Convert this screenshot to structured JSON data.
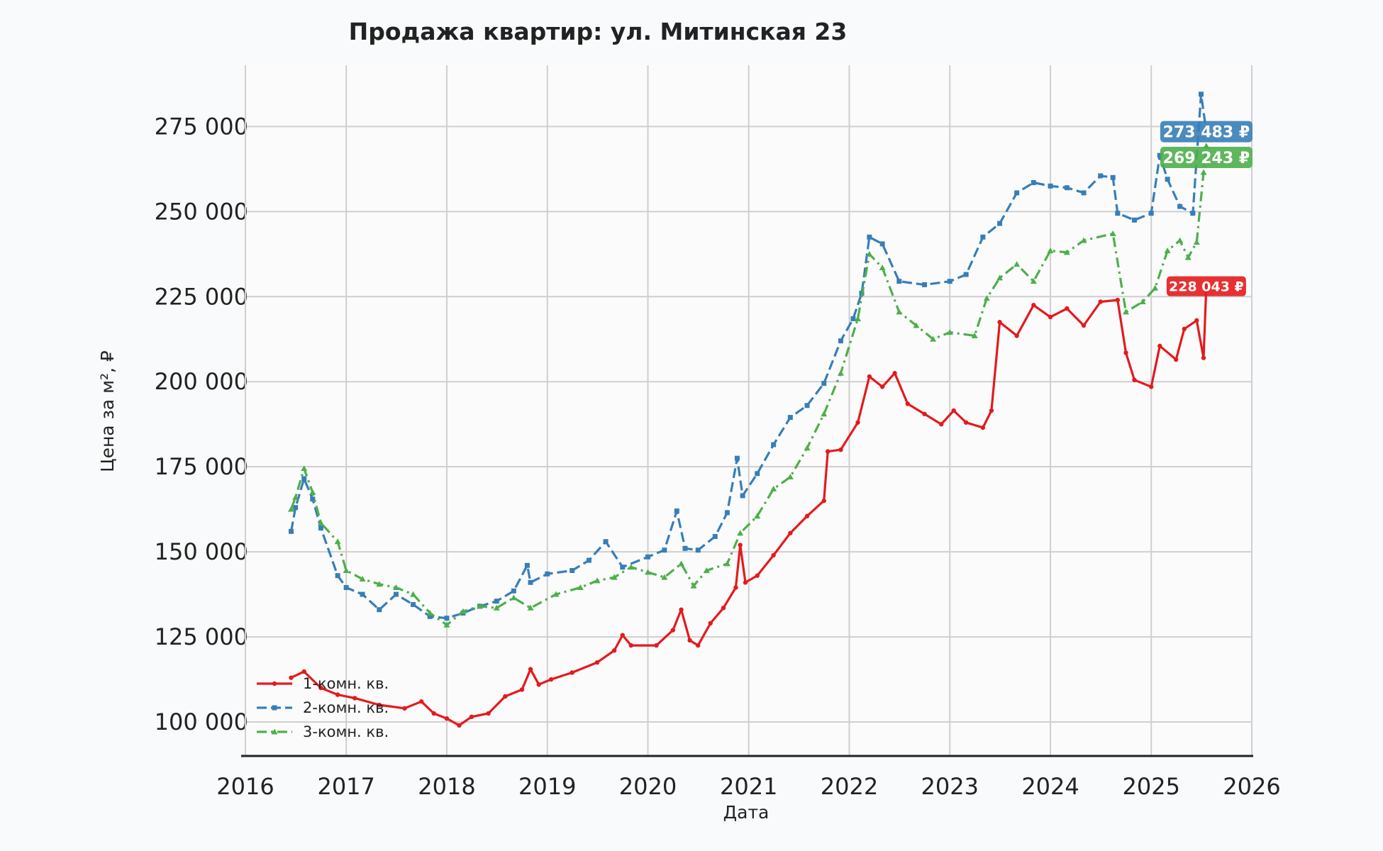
{
  "chart_data": {
    "type": "line",
    "title": "Продажа квартир: ул. Митинская 23",
    "xlabel": "Дата",
    "ylabel": "Цена за м², ₽",
    "xlim": [
      "2016-01-01",
      "2026-01-01"
    ],
    "ylim": [
      90000,
      293000
    ],
    "x_ticks": [
      "2016",
      "2017",
      "2018",
      "2019",
      "2020",
      "2021",
      "2022",
      "2023",
      "2024",
      "2025",
      "2026"
    ],
    "y_ticks": [
      100000,
      125000,
      150000,
      175000,
      200000,
      225000,
      250000,
      275000
    ],
    "y_tick_labels": [
      "100 000",
      "125 000",
      "150 000",
      "175 000",
      "200 000",
      "225 000",
      "250 000",
      "275 000"
    ],
    "grid": true,
    "legend_position": "bottom-left",
    "series": [
      {
        "name": "1-комн. кв.",
        "color": "#e41a1c",
        "dash": "solid",
        "marker": "dot",
        "end_label": "228 043 ₽",
        "points": [
          [
            "2016-06-15",
            113000
          ],
          [
            "2016-08-01",
            114800
          ],
          [
            "2016-10-01",
            110000
          ],
          [
            "2016-12-01",
            108000
          ],
          [
            "2017-02-01",
            107000
          ],
          [
            "2017-05-01",
            105000
          ],
          [
            "2017-08-01",
            104000
          ],
          [
            "2017-10-01",
            106000
          ],
          [
            "2017-11-15",
            102500
          ],
          [
            "2018-01-01",
            101000
          ],
          [
            "2018-02-15",
            99000
          ],
          [
            "2018-04-01",
            101500
          ],
          [
            "2018-06-01",
            102500
          ],
          [
            "2018-08-01",
            107500
          ],
          [
            "2018-10-01",
            109500
          ],
          [
            "2018-11-01",
            115500
          ],
          [
            "2018-12-01",
            111000
          ],
          [
            "2019-01-15",
            112500
          ],
          [
            "2019-04-01",
            114500
          ],
          [
            "2019-07-01",
            117500
          ],
          [
            "2019-09-01",
            121000
          ],
          [
            "2019-10-01",
            125500
          ],
          [
            "2019-11-01",
            122500
          ],
          [
            "2020-02-01",
            122500
          ],
          [
            "2020-04-01",
            127000
          ],
          [
            "2020-05-01",
            133000
          ],
          [
            "2020-06-01",
            124000
          ],
          [
            "2020-07-01",
            122500
          ],
          [
            "2020-08-15",
            129000
          ],
          [
            "2020-10-01",
            133500
          ],
          [
            "2020-11-15",
            139500
          ],
          [
            "2020-12-01",
            152000
          ],
          [
            "2020-12-20",
            141000
          ],
          [
            "2021-02-01",
            143000
          ],
          [
            "2021-04-01",
            149000
          ],
          [
            "2021-06-01",
            155500
          ],
          [
            "2021-08-01",
            160500
          ],
          [
            "2021-10-01",
            165000
          ],
          [
            "2021-10-15",
            179500
          ],
          [
            "2021-12-01",
            180000
          ],
          [
            "2022-02-01",
            188000
          ],
          [
            "2022-03-15",
            201500
          ],
          [
            "2022-05-01",
            198500
          ],
          [
            "2022-06-15",
            202500
          ],
          [
            "2022-08-01",
            193500
          ],
          [
            "2022-10-01",
            190500
          ],
          [
            "2022-12-01",
            187500
          ],
          [
            "2023-01-15",
            191500
          ],
          [
            "2023-03-01",
            188000
          ],
          [
            "2023-05-01",
            186500
          ],
          [
            "2023-06-01",
            191500
          ],
          [
            "2023-07-01",
            217500
          ],
          [
            "2023-09-01",
            213500
          ],
          [
            "2023-11-01",
            222500
          ],
          [
            "2024-01-01",
            219000
          ],
          [
            "2024-03-01",
            221500
          ],
          [
            "2024-05-01",
            216500
          ],
          [
            "2024-07-01",
            223500
          ],
          [
            "2024-09-01",
            224000
          ],
          [
            "2024-10-01",
            208500
          ],
          [
            "2024-11-01",
            200500
          ],
          [
            "2025-01-01",
            198500
          ],
          [
            "2025-02-01",
            210500
          ],
          [
            "2025-04-01",
            206500
          ],
          [
            "2025-05-01",
            215500
          ],
          [
            "2025-06-15",
            218000
          ],
          [
            "2025-07-10",
            207000
          ],
          [
            "2025-07-20",
            228043
          ]
        ]
      },
      {
        "name": "2-комн. кв.",
        "color": "#377eb8",
        "dash": "dashed",
        "marker": "square",
        "end_label": "273 483 ₽",
        "points": [
          [
            "2016-06-15",
            156000
          ],
          [
            "2016-07-01",
            163000
          ],
          [
            "2016-08-01",
            171500
          ],
          [
            "2016-09-01",
            165500
          ],
          [
            "2016-10-01",
            157000
          ],
          [
            "2016-12-01",
            143000
          ],
          [
            "2017-01-01",
            139500
          ],
          [
            "2017-03-01",
            137500
          ],
          [
            "2017-05-01",
            133000
          ],
          [
            "2017-07-01",
            137500
          ],
          [
            "2017-09-01",
            134500
          ],
          [
            "2017-11-01",
            131000
          ],
          [
            "2018-01-01",
            130500
          ],
          [
            "2018-03-01",
            132000
          ],
          [
            "2018-05-01",
            134000
          ],
          [
            "2018-07-01",
            135500
          ],
          [
            "2018-09-01",
            138500
          ],
          [
            "2018-10-20",
            146000
          ],
          [
            "2018-11-01",
            141000
          ],
          [
            "2019-01-01",
            143500
          ],
          [
            "2019-04-01",
            144500
          ],
          [
            "2019-06-01",
            147500
          ],
          [
            "2019-08-01",
            153000
          ],
          [
            "2019-10-01",
            145500
          ],
          [
            "2020-01-01",
            148500
          ],
          [
            "2020-03-01",
            150500
          ],
          [
            "2020-04-15",
            162000
          ],
          [
            "2020-05-15",
            151000
          ],
          [
            "2020-07-01",
            150500
          ],
          [
            "2020-09-01",
            154500
          ],
          [
            "2020-10-15",
            161500
          ],
          [
            "2020-11-20",
            177500
          ],
          [
            "2020-12-10",
            166500
          ],
          [
            "2021-02-01",
            173000
          ],
          [
            "2021-04-01",
            181500
          ],
          [
            "2021-06-01",
            189500
          ],
          [
            "2021-08-01",
            193000
          ],
          [
            "2021-10-01",
            199500
          ],
          [
            "2021-12-01",
            212000
          ],
          [
            "2022-01-15",
            218500
          ],
          [
            "2022-02-15",
            226000
          ],
          [
            "2022-03-15",
            242500
          ],
          [
            "2022-05-01",
            240500
          ],
          [
            "2022-07-01",
            229500
          ],
          [
            "2022-10-01",
            228500
          ],
          [
            "2023-01-01",
            229500
          ],
          [
            "2023-03-01",
            231500
          ],
          [
            "2023-05-01",
            242500
          ],
          [
            "2023-07-01",
            246500
          ],
          [
            "2023-09-01",
            255500
          ],
          [
            "2023-11-01",
            258500
          ],
          [
            "2024-01-01",
            257500
          ],
          [
            "2024-03-01",
            257000
          ],
          [
            "2024-05-01",
            255500
          ],
          [
            "2024-07-01",
            260500
          ],
          [
            "2024-08-15",
            260000
          ],
          [
            "2024-09-01",
            249500
          ],
          [
            "2024-11-01",
            247500
          ],
          [
            "2025-01-01",
            249500
          ],
          [
            "2025-02-01",
            266500
          ],
          [
            "2025-03-01",
            259500
          ],
          [
            "2025-04-15",
            251500
          ],
          [
            "2025-06-01",
            249500
          ],
          [
            "2025-07-01",
            284500
          ],
          [
            "2025-07-20",
            273483
          ]
        ]
      },
      {
        "name": "3-комн. кв.",
        "color": "#4daf4a",
        "dash": "dashdot",
        "marker": "triangle",
        "end_label": "269 243 ₽",
        "points": [
          [
            "2016-06-15",
            162500
          ],
          [
            "2016-07-01",
            166000
          ],
          [
            "2016-08-01",
            174500
          ],
          [
            "2016-09-01",
            167500
          ],
          [
            "2016-10-01",
            158500
          ],
          [
            "2016-12-01",
            153000
          ],
          [
            "2017-01-01",
            144500
          ],
          [
            "2017-03-01",
            142000
          ],
          [
            "2017-05-01",
            140500
          ],
          [
            "2017-07-01",
            139500
          ],
          [
            "2017-09-01",
            137500
          ],
          [
            "2017-11-01",
            132000
          ],
          [
            "2018-01-01",
            128500
          ],
          [
            "2018-03-01",
            132500
          ],
          [
            "2018-05-01",
            134000
          ],
          [
            "2018-07-01",
            133500
          ],
          [
            "2018-09-01",
            136500
          ],
          [
            "2018-11-01",
            133500
          ],
          [
            "2019-02-01",
            137500
          ],
          [
            "2019-05-01",
            139500
          ],
          [
            "2019-07-01",
            141500
          ],
          [
            "2019-09-01",
            142500
          ],
          [
            "2019-11-01",
            145500
          ],
          [
            "2020-01-01",
            144000
          ],
          [
            "2020-03-01",
            142500
          ],
          [
            "2020-05-01",
            146500
          ],
          [
            "2020-06-15",
            140000
          ],
          [
            "2020-08-01",
            144500
          ],
          [
            "2020-10-15",
            146500
          ],
          [
            "2020-12-01",
            155500
          ],
          [
            "2021-02-01",
            160500
          ],
          [
            "2021-04-01",
            168500
          ],
          [
            "2021-06-01",
            172000
          ],
          [
            "2021-08-01",
            180500
          ],
          [
            "2021-10-01",
            190500
          ],
          [
            "2021-12-01",
            202500
          ],
          [
            "2022-02-01",
            218500
          ],
          [
            "2022-03-15",
            237500
          ],
          [
            "2022-05-01",
            233500
          ],
          [
            "2022-07-01",
            220500
          ],
          [
            "2022-09-01",
            216500
          ],
          [
            "2022-11-01",
            212500
          ],
          [
            "2023-01-01",
            214500
          ],
          [
            "2023-04-01",
            213500
          ],
          [
            "2023-05-15",
            224500
          ],
          [
            "2023-07-01",
            230500
          ],
          [
            "2023-09-01",
            234500
          ],
          [
            "2023-11-01",
            229500
          ],
          [
            "2024-01-01",
            238500
          ],
          [
            "2024-03-01",
            238000
          ],
          [
            "2024-05-01",
            241500
          ],
          [
            "2024-08-15",
            243500
          ],
          [
            "2024-10-01",
            220500
          ],
          [
            "2024-12-01",
            223500
          ],
          [
            "2025-01-15",
            227500
          ],
          [
            "2025-03-01",
            238500
          ],
          [
            "2025-04-15",
            241500
          ],
          [
            "2025-05-15",
            236500
          ],
          [
            "2025-06-15",
            241000
          ],
          [
            "2025-07-10",
            261500
          ],
          [
            "2025-07-20",
            269243
          ]
        ]
      }
    ]
  }
}
